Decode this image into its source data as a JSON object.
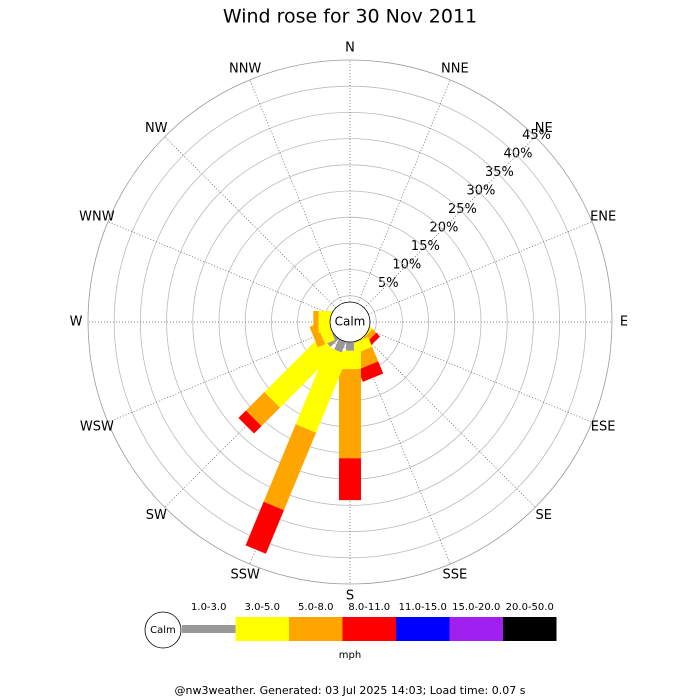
{
  "chart_data": {
    "type": "windrose",
    "title": "Wind rose for 30 Nov 2011",
    "categories": [
      "N",
      "NNE",
      "NE",
      "ENE",
      "E",
      "ESE",
      "SE",
      "SSE",
      "S",
      "SSW",
      "SW",
      "WSW",
      "W",
      "WNW",
      "NW",
      "NNW"
    ],
    "rlim": [
      0,
      50
    ],
    "rticks": [
      {
        "value": 5,
        "label": "5%"
      },
      {
        "value": 10,
        "label": "10%"
      },
      {
        "value": 15,
        "label": "15%"
      },
      {
        "value": 20,
        "label": "20%"
      },
      {
        "value": 25,
        "label": "25%"
      },
      {
        "value": 30,
        "label": "30%"
      },
      {
        "value": 35,
        "label": "35%"
      },
      {
        "value": 40,
        "label": "40%"
      },
      {
        "value": 45,
        "label": "45%"
      }
    ],
    "calm_label": "Calm",
    "unit": "mph",
    "series": [
      {
        "name": "1.0-3.0",
        "color": "#999999",
        "values": [
          0,
          0,
          0,
          0,
          0,
          0,
          3,
          4,
          5.5,
          6,
          6,
          4,
          3,
          0,
          0,
          0
        ]
      },
      {
        "name": "3.0-5.0",
        "color": "#ffff00",
        "values": [
          0,
          0,
          0,
          0,
          0,
          0,
          1,
          2,
          3.5,
          16,
          15,
          2,
          3,
          0,
          0,
          0
        ]
      },
      {
        "name": "5.0-8.0",
        "color": "#ffa500",
        "values": [
          0,
          0,
          0,
          0,
          0,
          0,
          1,
          3,
          17,
          16,
          5,
          1.5,
          1,
          0,
          0,
          0
        ]
      },
      {
        "name": "8.0-11.0",
        "color": "#ff0000",
        "values": [
          0,
          0,
          0,
          0,
          0,
          0,
          1,
          2.5,
          8,
          9,
          2,
          0,
          0,
          0,
          0,
          0
        ]
      },
      {
        "name": "11.0-15.0",
        "color": "#0000ff",
        "values": [
          0,
          0,
          0,
          0,
          0,
          0,
          0,
          0,
          0,
          0,
          0,
          0,
          0,
          0,
          0,
          0
        ]
      },
      {
        "name": "15.0-20.0",
        "color": "#a020f0",
        "values": [
          0,
          0,
          0,
          0,
          0,
          0,
          0,
          0,
          0,
          0,
          0,
          0,
          0,
          0,
          0,
          0
        ]
      },
      {
        "name": "20.0-50.0",
        "color": "#000000",
        "values": [
          0,
          0,
          0,
          0,
          0,
          0,
          0,
          0,
          0,
          0,
          0,
          0,
          0,
          0,
          0,
          0
        ]
      }
    ],
    "footer": "@nw3weather. Generated: 03 Jul 2025 14:03; Load time: 0.07 s"
  }
}
